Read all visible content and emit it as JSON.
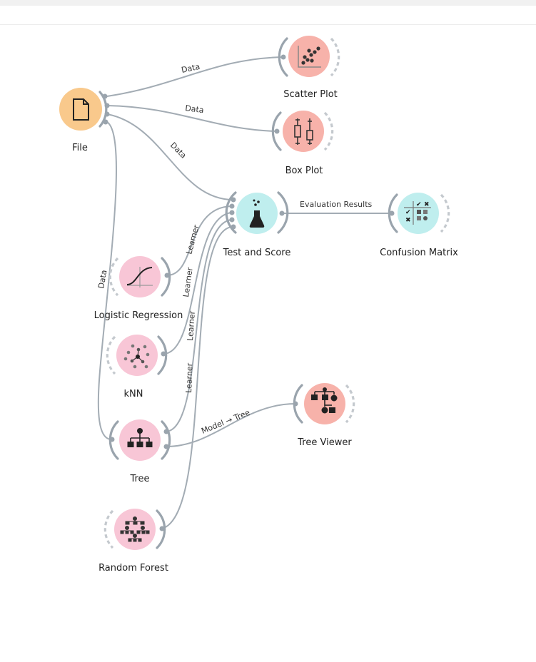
{
  "nodes": {
    "file": {
      "label": "File",
      "color": "#f9c98c",
      "icon": "document-icon"
    },
    "scatter_plot": {
      "label": "Scatter Plot",
      "color": "#f7b2aa",
      "icon": "scatter-plot-icon"
    },
    "box_plot": {
      "label": "Box Plot",
      "color": "#f7b2aa",
      "icon": "box-plot-icon"
    },
    "test_and_score": {
      "label": "Test and Score",
      "color": "#bfeeee",
      "icon": "flask-icon"
    },
    "confusion_matrix": {
      "label": "Confusion Matrix",
      "color": "#bfeeee",
      "icon": "matrix-icon"
    },
    "logistic_regression": {
      "label": "Logistic Regression",
      "color": "#f8c6d6",
      "icon": "sigmoid-icon"
    },
    "knn": {
      "label": "kNN",
      "color": "#f8c6d6",
      "icon": "knn-icon"
    },
    "tree": {
      "label": "Tree",
      "color": "#f8c6d6",
      "icon": "tree-icon"
    },
    "tree_viewer": {
      "label": "Tree Viewer",
      "color": "#f7b2aa",
      "icon": "tree-viewer-icon"
    },
    "random_forest": {
      "label": "Random Forest",
      "color": "#f8c6d6",
      "icon": "forest-icon"
    }
  },
  "links": {
    "file_scatter": "Data",
    "file_box": "Data",
    "file_test": "Data",
    "file_tree": "Data",
    "lr_test": "Learner",
    "knn_test": "Learner",
    "tree_test": "Learner",
    "rf_test": "Learner",
    "test_confusion": "Evaluation Results",
    "tree_viewer": "Model → Tree"
  }
}
